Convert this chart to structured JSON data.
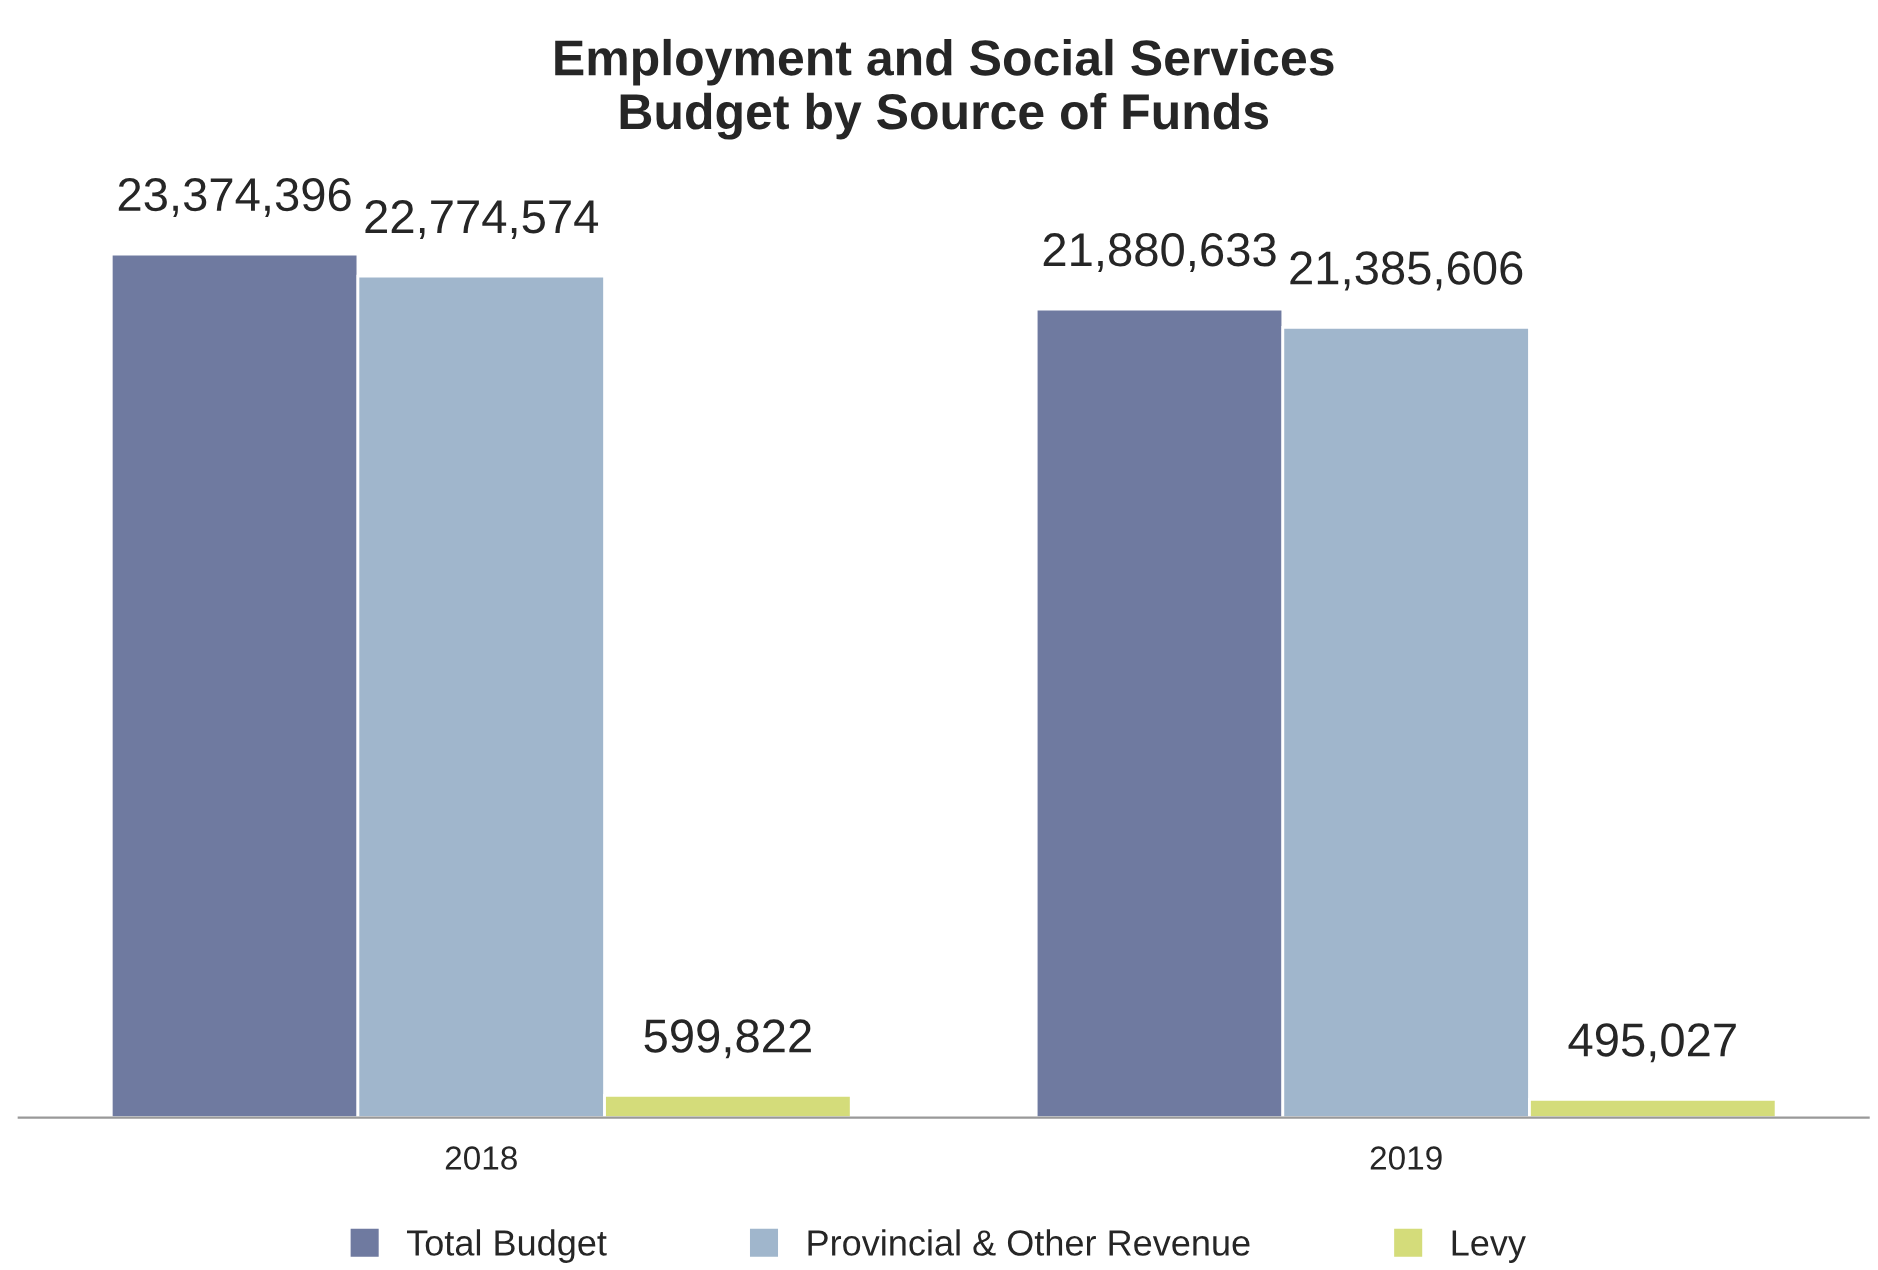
{
  "chart_data": {
    "type": "bar",
    "title": "Employment and Social Services\nBudget by Source of Funds",
    "categories": [
      "2018",
      "2019"
    ],
    "series": [
      {
        "name": "Total Budget",
        "color": "#6f7aa0",
        "values": [
          23374396,
          21880633
        ],
        "value_labels": [
          "23,374,396",
          "21,880,633"
        ]
      },
      {
        "name": "Provincial & Other Revenue",
        "color": "#a0b6cc",
        "values": [
          22774574,
          21385606
        ],
        "value_labels": [
          "22,774,574",
          "21,385,606"
        ]
      },
      {
        "name": "Levy",
        "color": "#d4dc7a",
        "values": [
          599822,
          495027
        ],
        "value_labels": [
          "599,822",
          "495,027"
        ]
      }
    ],
    "legend": "bottom",
    "grid": false
  }
}
